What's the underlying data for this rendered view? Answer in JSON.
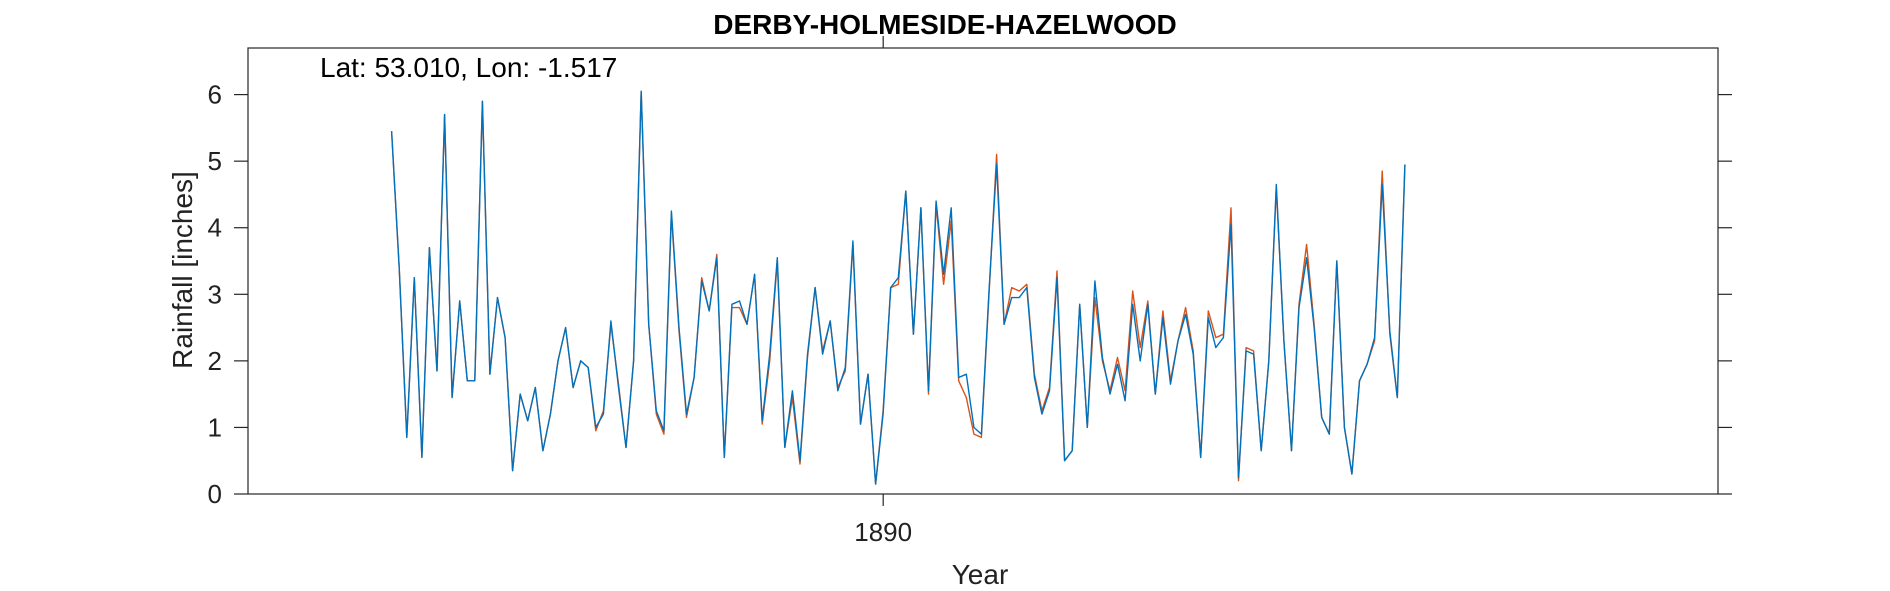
{
  "chart_data": {
    "type": "line",
    "title": "DERBY-HOLMESIDE-HAZELWOOD",
    "annotation": "Lat: 53.010, Lon: -1.517",
    "xlabel": "Year",
    "ylabel": "Rainfall [inches]",
    "xticks": [
      {
        "value": 1890,
        "label": "1890"
      }
    ],
    "yticks": [
      0,
      1,
      2,
      3,
      4,
      5,
      6
    ],
    "ylim": [
      0,
      6.7
    ],
    "xlim": [
      1883.0,
      1899.2
    ],
    "grid": false,
    "x_start": 1884.583,
    "x_step": 0.08333,
    "series": [
      {
        "color": "#d95319",
        "values": [
          5.45,
          3.4,
          0.85,
          3.25,
          0.55,
          3.7,
          1.85,
          5.7,
          1.45,
          2.9,
          1.7,
          1.7,
          5.9,
          1.8,
          2.95,
          2.35,
          0.35,
          1.5,
          1.1,
          1.6,
          0.65,
          1.2,
          2.0,
          2.5,
          1.6,
          2.0,
          1.9,
          0.95,
          1.25,
          2.55,
          1.65,
          0.7,
          2.0,
          6.05,
          2.55,
          1.2,
          0.9,
          4.2,
          2.45,
          1.15,
          1.75,
          3.25,
          2.75,
          3.6,
          0.55,
          2.8,
          2.8,
          2.55,
          3.3,
          1.05,
          2.0,
          3.5,
          0.7,
          1.45,
          0.45,
          2.05,
          3.1,
          2.15,
          2.6,
          1.6,
          1.85,
          3.75,
          1.05,
          1.8,
          0.15,
          1.25,
          3.1,
          3.15,
          4.55,
          2.4,
          4.3,
          1.5,
          4.35,
          3.15,
          4.1,
          1.7,
          1.45,
          0.9,
          0.85,
          3.0,
          5.1,
          2.55,
          3.1,
          3.05,
          3.15,
          1.8,
          1.25,
          1.6,
          3.35,
          0.5,
          0.65,
          2.85,
          1.0,
          2.95,
          2.0,
          1.55,
          2.05,
          1.55,
          3.05,
          2.2,
          2.9,
          1.5,
          2.75,
          1.7,
          2.3,
          2.8,
          2.15,
          0.55,
          2.75,
          2.35,
          2.4,
          4.3,
          0.2,
          2.2,
          2.15,
          0.65,
          2.0,
          4.6,
          2.3,
          0.65,
          2.85,
          3.75,
          2.55,
          1.15,
          0.9,
          3.5,
          1.0,
          0.3,
          1.7,
          1.95,
          2.3,
          4.85,
          2.4,
          1.45,
          4.95
        ]
      },
      {
        "color": "#0072bd",
        "values": [
          5.45,
          3.4,
          0.85,
          3.25,
          0.55,
          3.7,
          1.85,
          5.7,
          1.45,
          2.9,
          1.7,
          1.7,
          5.9,
          1.8,
          2.95,
          2.35,
          0.35,
          1.5,
          1.1,
          1.6,
          0.65,
          1.2,
          2.0,
          2.5,
          1.6,
          2.0,
          1.9,
          1.0,
          1.2,
          2.6,
          1.6,
          0.7,
          2.0,
          6.05,
          2.55,
          1.25,
          0.95,
          4.25,
          2.5,
          1.2,
          1.75,
          3.2,
          2.75,
          3.55,
          0.55,
          2.85,
          2.9,
          2.55,
          3.3,
          1.1,
          2.1,
          3.55,
          0.7,
          1.55,
          0.5,
          2.1,
          3.1,
          2.1,
          2.6,
          1.55,
          1.9,
          3.8,
          1.05,
          1.8,
          0.15,
          1.2,
          3.1,
          3.25,
          4.55,
          2.4,
          4.3,
          1.55,
          4.4,
          3.3,
          4.3,
          1.75,
          1.8,
          1.0,
          0.9,
          3.05,
          4.95,
          2.55,
          2.95,
          2.95,
          3.1,
          1.75,
          1.2,
          1.55,
          3.25,
          0.5,
          0.65,
          2.85,
          1.0,
          3.2,
          2.05,
          1.5,
          1.95,
          1.4,
          2.85,
          2.0,
          2.85,
          1.5,
          2.65,
          1.65,
          2.3,
          2.7,
          2.1,
          0.55,
          2.65,
          2.2,
          2.35,
          4.05,
          0.25,
          2.15,
          2.1,
          0.65,
          2.0,
          4.65,
          2.3,
          0.65,
          2.8,
          3.55,
          2.5,
          1.15,
          0.9,
          3.5,
          1.0,
          0.3,
          1.7,
          1.95,
          2.35,
          4.65,
          2.45,
          1.45,
          4.95
        ]
      }
    ]
  }
}
